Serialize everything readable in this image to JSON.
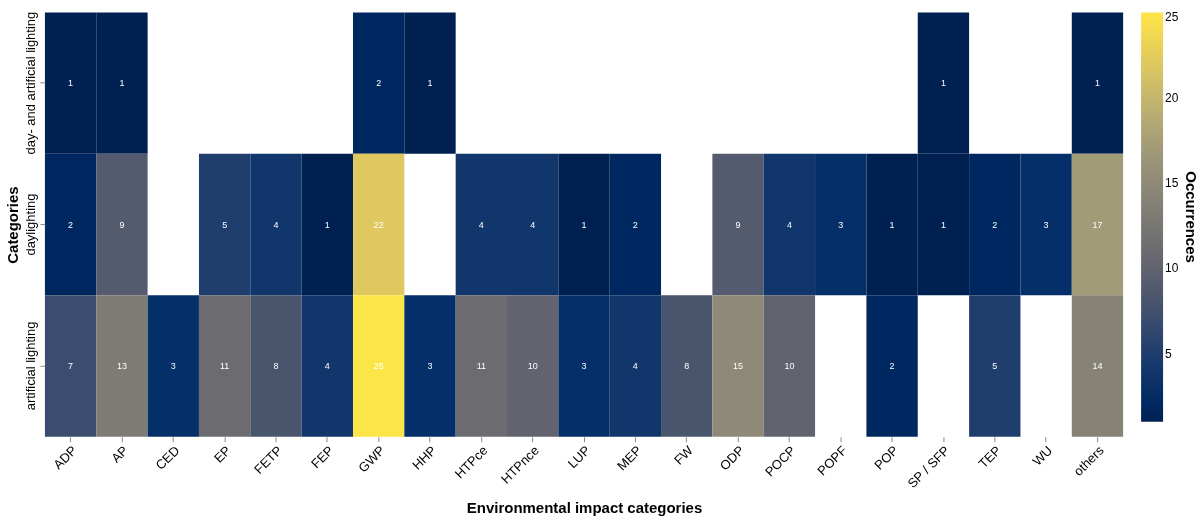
{
  "chart_data": {
    "type": "heatmap",
    "xlabel": "Environmental impact categories",
    "ylabel": "Categories",
    "clabel": "Occurrences",
    "categories": [
      "ADP",
      "AP",
      "CED",
      "EP",
      "FETP",
      "FEP",
      "GWP",
      "HHP",
      "HTPce",
      "HTPnce",
      "LUP",
      "MEP",
      "FW",
      "ODP",
      "POCP",
      "POPF",
      "POP",
      "SP / SFP",
      "TEP",
      "WU",
      "others"
    ],
    "y_categories": [
      "day- and artificial lighting",
      "daylighting",
      "artificial lighting"
    ],
    "cells": [
      [
        1,
        1,
        null,
        null,
        null,
        null,
        2,
        1,
        null,
        null,
        null,
        null,
        null,
        null,
        null,
        null,
        null,
        1,
        null,
        null,
        1
      ],
      [
        2,
        9,
        null,
        5,
        4,
        1,
        22,
        null,
        4,
        4,
        1,
        2,
        null,
        9,
        4,
        3,
        1,
        1,
        2,
        3,
        17
      ],
      [
        7,
        13,
        3,
        11,
        8,
        4,
        25,
        3,
        11,
        10,
        3,
        4,
        8,
        15,
        10,
        null,
        2,
        null,
        5,
        null,
        14
      ]
    ],
    "clim": [
      1,
      25
    ],
    "cticks": [
      5,
      10,
      15,
      20,
      25
    ],
    "data_labels": true,
    "grid": false
  }
}
